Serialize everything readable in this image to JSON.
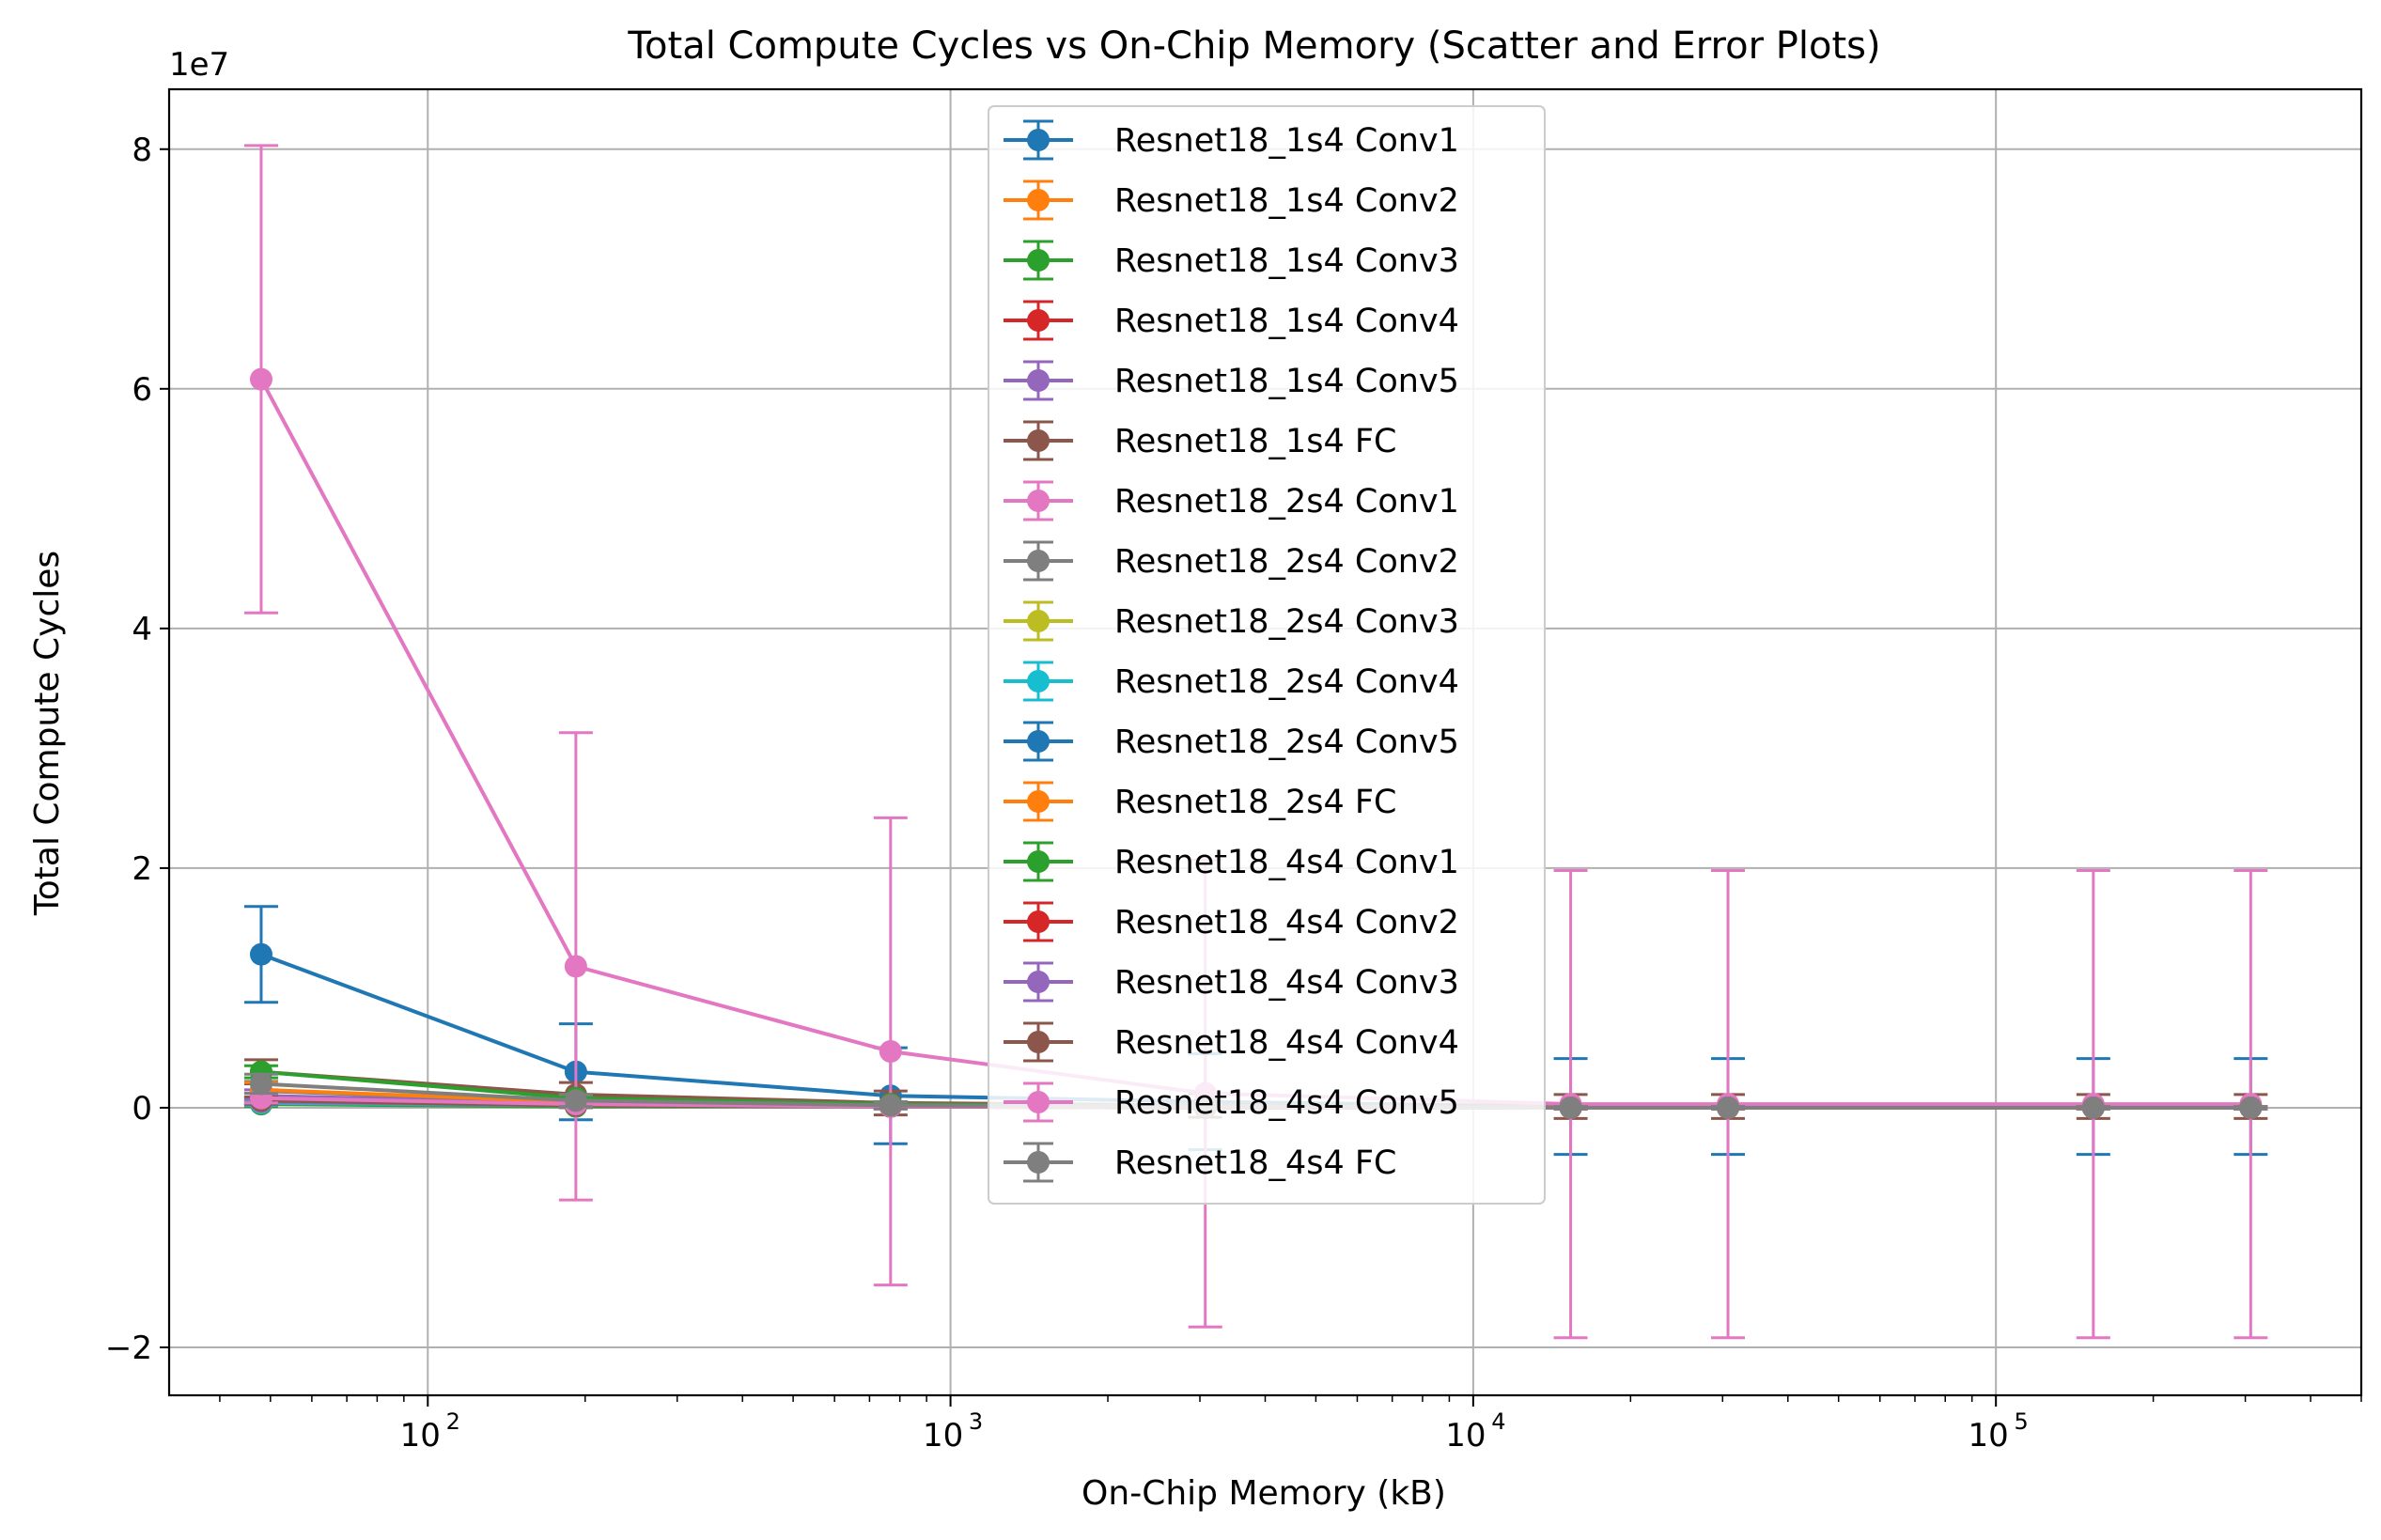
{
  "chart_data": {
    "type": "line",
    "title": "Total Compute Cycles vs On-Chip Memory (Scatter and Error Plots)",
    "xlabel": "On-Chip Memory (kB)",
    "ylabel": "Total Compute Cycles",
    "y_offset_label": "1e7",
    "x_scale": "log",
    "xlim": [
      32,
      500000
    ],
    "ylim": [
      -2.4,
      8.5
    ],
    "grid": true,
    "legend_position": "upper center",
    "x_ticks": [
      100,
      1000,
      10000,
      100000
    ],
    "x_tick_labels": [
      {
        "base": "10",
        "exp": "2"
      },
      {
        "base": "10",
        "exp": "3"
      },
      {
        "base": "10",
        "exp": "4"
      },
      {
        "base": "10",
        "exp": "5"
      }
    ],
    "y_ticks": [
      -2,
      0,
      2,
      4,
      6,
      8
    ],
    "y_tick_labels": [
      "−2",
      "0",
      "2",
      "4",
      "6",
      "8"
    ],
    "x": [
      48,
      192,
      768,
      3072,
      15360,
      30720,
      153600,
      307200
    ],
    "series": [
      {
        "name": "Resnet18_1s4 Conv1",
        "color": "#1f77b4",
        "values": [
          1.28,
          0.3,
          0.1,
          0.05,
          0.01,
          0.01,
          0.01,
          0.01
        ],
        "errors": [
          0.4,
          0.4,
          0.4,
          0.4,
          0.4,
          0.4,
          0.4,
          0.4
        ]
      },
      {
        "name": "Resnet18_1s4 Conv2",
        "color": "#ff7f0e",
        "values": [
          0.05,
          0.02,
          0.01,
          0.01,
          0.0,
          0.0,
          0.0,
          0.0
        ],
        "errors": [
          0.03,
          0.02,
          0.01,
          0.01,
          0.01,
          0.01,
          0.01,
          0.01
        ]
      },
      {
        "name": "Resnet18_1s4 Conv3",
        "color": "#2ca02c",
        "values": [
          0.03,
          0.01,
          0.01,
          0.0,
          0.0,
          0.0,
          0.0,
          0.0
        ],
        "errors": [
          0.02,
          0.01,
          0.01,
          0.01,
          0.01,
          0.01,
          0.01,
          0.01
        ]
      },
      {
        "name": "Resnet18_1s4 Conv4",
        "color": "#d62728",
        "values": [
          0.08,
          0.03,
          0.01,
          0.01,
          0.0,
          0.0,
          0.0,
          0.0
        ],
        "errors": [
          0.04,
          0.02,
          0.01,
          0.01,
          0.01,
          0.01,
          0.01,
          0.01
        ]
      },
      {
        "name": "Resnet18_1s4 Conv5",
        "color": "#9467bd",
        "values": [
          0.1,
          0.04,
          0.02,
          0.01,
          0.0,
          0.0,
          0.0,
          0.0
        ],
        "errors": [
          0.05,
          0.02,
          0.01,
          0.01,
          0.01,
          0.01,
          0.01,
          0.01
        ]
      },
      {
        "name": "Resnet18_1s4 FC",
        "color": "#8c564b",
        "values": [
          0.3,
          0.11,
          0.04,
          0.02,
          0.01,
          0.01,
          0.01,
          0.01
        ],
        "errors": [
          0.1,
          0.1,
          0.1,
          0.1,
          0.1,
          0.1,
          0.1,
          0.1
        ]
      },
      {
        "name": "Resnet18_2s4 Conv1",
        "color": "#e377c2",
        "values": [
          6.08,
          1.18,
          0.47,
          0.12,
          0.03,
          0.03,
          0.03,
          0.03
        ],
        "errors": [
          1.95,
          1.95,
          1.95,
          1.95,
          1.95,
          1.95,
          1.95,
          1.95
        ]
      },
      {
        "name": "Resnet18_2s4 Conv2",
        "color": "#7f7f7f",
        "values": [
          0.14,
          0.05,
          0.02,
          0.01,
          0.0,
          0.0,
          0.0,
          0.0
        ],
        "errors": [
          0.08,
          0.05,
          0.03,
          0.02,
          0.01,
          0.01,
          0.01,
          0.01
        ]
      },
      {
        "name": "Resnet18_2s4 Conv3",
        "color": "#bcbd22",
        "values": [
          0.05,
          0.02,
          0.01,
          0.0,
          0.0,
          0.0,
          0.0,
          0.0
        ],
        "errors": [
          0.02,
          0.01,
          0.01,
          0.01,
          0.01,
          0.01,
          0.01,
          0.01
        ]
      },
      {
        "name": "Resnet18_2s4 Conv4",
        "color": "#17becf",
        "values": [
          0.04,
          0.02,
          0.01,
          0.0,
          0.0,
          0.0,
          0.0,
          0.0
        ],
        "errors": [
          0.02,
          0.01,
          0.01,
          0.01,
          0.01,
          0.01,
          0.01,
          0.01
        ]
      },
      {
        "name": "Resnet18_2s4 Conv5",
        "color": "#1f77b4",
        "values": [
          0.06,
          0.02,
          0.01,
          0.0,
          0.0,
          0.0,
          0.0,
          0.0
        ],
        "errors": [
          0.03,
          0.01,
          0.01,
          0.01,
          0.01,
          0.01,
          0.01,
          0.01
        ]
      },
      {
        "name": "Resnet18_2s4 FC",
        "color": "#ff7f0e",
        "values": [
          0.15,
          0.05,
          0.02,
          0.01,
          0.0,
          0.0,
          0.0,
          0.0
        ],
        "errors": [
          0.06,
          0.03,
          0.02,
          0.01,
          0.01,
          0.01,
          0.01,
          0.01
        ]
      },
      {
        "name": "Resnet18_4s4 Conv1",
        "color": "#2ca02c",
        "values": [
          0.3,
          0.08,
          0.03,
          0.01,
          0.0,
          0.0,
          0.0,
          0.0
        ],
        "errors": [
          0.05,
          0.03,
          0.02,
          0.01,
          0.01,
          0.01,
          0.01,
          0.01
        ]
      },
      {
        "name": "Resnet18_4s4 Conv2",
        "color": "#d62728",
        "values": [
          0.06,
          0.02,
          0.01,
          0.0,
          0.0,
          0.0,
          0.0,
          0.0
        ],
        "errors": [
          0.03,
          0.01,
          0.01,
          0.01,
          0.01,
          0.01,
          0.01,
          0.01
        ]
      },
      {
        "name": "Resnet18_4s4 Conv3",
        "color": "#9467bd",
        "values": [
          0.05,
          0.02,
          0.01,
          0.0,
          0.0,
          0.0,
          0.0,
          0.0
        ],
        "errors": [
          0.02,
          0.01,
          0.01,
          0.01,
          0.01,
          0.01,
          0.01,
          0.01
        ]
      },
      {
        "name": "Resnet18_4s4 Conv4",
        "color": "#8c564b",
        "values": [
          0.06,
          0.02,
          0.01,
          0.0,
          0.0,
          0.0,
          0.0,
          0.0
        ],
        "errors": [
          0.03,
          0.01,
          0.01,
          0.01,
          0.01,
          0.01,
          0.01,
          0.01
        ]
      },
      {
        "name": "Resnet18_4s4 Conv5",
        "color": "#e377c2",
        "values": [
          0.08,
          0.03,
          0.01,
          0.01,
          0.0,
          0.0,
          0.0,
          0.0
        ],
        "errors": [
          0.04,
          0.02,
          0.01,
          0.01,
          0.01,
          0.01,
          0.01,
          0.01
        ]
      },
      {
        "name": "Resnet18_4s4 FC",
        "color": "#7f7f7f",
        "values": [
          0.2,
          0.06,
          0.02,
          0.01,
          0.0,
          0.0,
          0.0,
          0.0
        ],
        "errors": [
          0.08,
          0.05,
          0.03,
          0.02,
          0.01,
          0.01,
          0.01,
          0.01
        ]
      }
    ]
  }
}
